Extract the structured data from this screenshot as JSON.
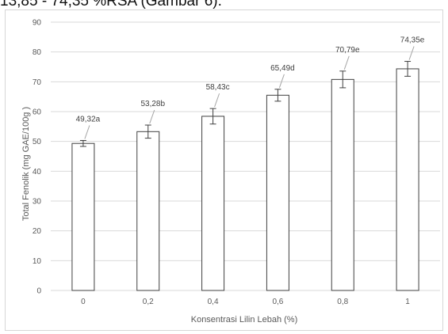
{
  "caption": "13,85 - 74,35 %RSA (Gambar 6).",
  "chart_data": {
    "type": "bar",
    "categories": [
      "0",
      "0,2",
      "0,4",
      "0,6",
      "0,8",
      "1"
    ],
    "values": [
      49.32,
      53.28,
      58.43,
      65.49,
      70.79,
      74.35
    ],
    "errors": [
      1.0,
      2.2,
      2.6,
      2.0,
      2.8,
      2.5
    ],
    "data_labels": [
      "49,32a",
      "53,28b",
      "58,43c",
      "65,49d",
      "70,79e",
      "74,35e"
    ],
    "title": "",
    "xlabel": "Konsentrasi Lilin Lebah (%)",
    "ylabel": "Total Fenolik (mg GAE/100g )",
    "ylim": [
      0,
      90
    ],
    "yticks": [
      0,
      10,
      20,
      30,
      40,
      50,
      60,
      70,
      80,
      90
    ],
    "grid": true,
    "legend": "none",
    "colors": {
      "bar_fill": "#ffffff",
      "bar_stroke": "#404040",
      "grid": "#d9d9d9"
    }
  }
}
